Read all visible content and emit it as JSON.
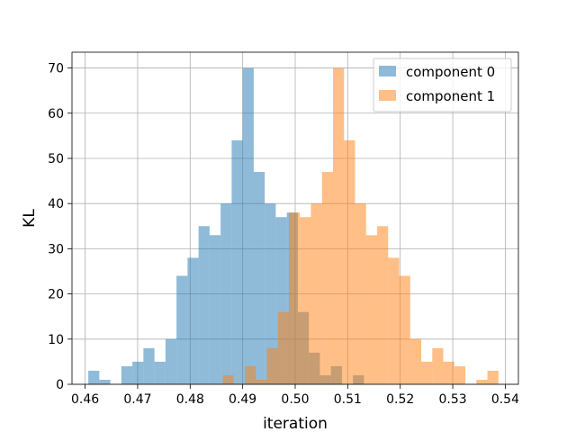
{
  "chart_data": {
    "type": "bar",
    "subtype": "overlapping-histogram",
    "xlabel": "iteration",
    "ylabel": "KL",
    "xlim": [
      0.4575,
      0.5425
    ],
    "ylim": [
      0,
      73.5
    ],
    "xticks": [
      0.46,
      0.47,
      0.48,
      0.49,
      0.5,
      0.51,
      0.52,
      0.53,
      0.54
    ],
    "xtick_labels": [
      "0.46",
      "0.47",
      "0.48",
      "0.49",
      "0.50",
      "0.51",
      "0.52",
      "0.53",
      "0.54"
    ],
    "yticks": [
      0,
      10,
      20,
      30,
      40,
      50,
      60,
      70
    ],
    "ytick_labels": [
      "0",
      "10",
      "20",
      "30",
      "40",
      "50",
      "60",
      "70"
    ],
    "grid": true,
    "legend_position": "top-right",
    "series": [
      {
        "name": "component 0",
        "color": "#1f77b4",
        "opacity": 0.5,
        "bin_edges": [
          0.4606,
          0.4627,
          0.4648,
          0.4669,
          0.469,
          0.4711,
          0.4732,
          0.4753,
          0.4774,
          0.4795,
          0.4816,
          0.4837,
          0.4858,
          0.4879,
          0.49,
          0.4921,
          0.4942,
          0.4963,
          0.4984,
          0.5005,
          0.5026,
          0.5047,
          0.5068,
          0.5089,
          0.511,
          0.5131
        ],
        "counts": [
          3,
          1,
          0,
          4,
          5,
          8,
          5,
          10,
          24,
          28,
          35,
          33,
          40,
          54,
          70,
          47,
          40,
          37,
          38,
          16,
          7,
          2,
          4,
          0,
          2
        ]
      },
      {
        "name": "component 1",
        "color": "#ff7f0e",
        "opacity": 0.5,
        "bin_edges": [
          0.4862,
          0.4883,
          0.4904,
          0.4925,
          0.4946,
          0.4967,
          0.4988,
          0.5009,
          0.503,
          0.5051,
          0.5072,
          0.5093,
          0.5114,
          0.5135,
          0.5156,
          0.5177,
          0.5198,
          0.5219,
          0.524,
          0.5261,
          0.5282,
          0.5303,
          0.5324,
          0.5345,
          0.5366,
          0.5387
        ],
        "counts": [
          2,
          0,
          4,
          1,
          8,
          16,
          38,
          37,
          40,
          47,
          70,
          54,
          40,
          33,
          35,
          28,
          24,
          10,
          5,
          8,
          5,
          4,
          0,
          1,
          3
        ]
      }
    ]
  }
}
